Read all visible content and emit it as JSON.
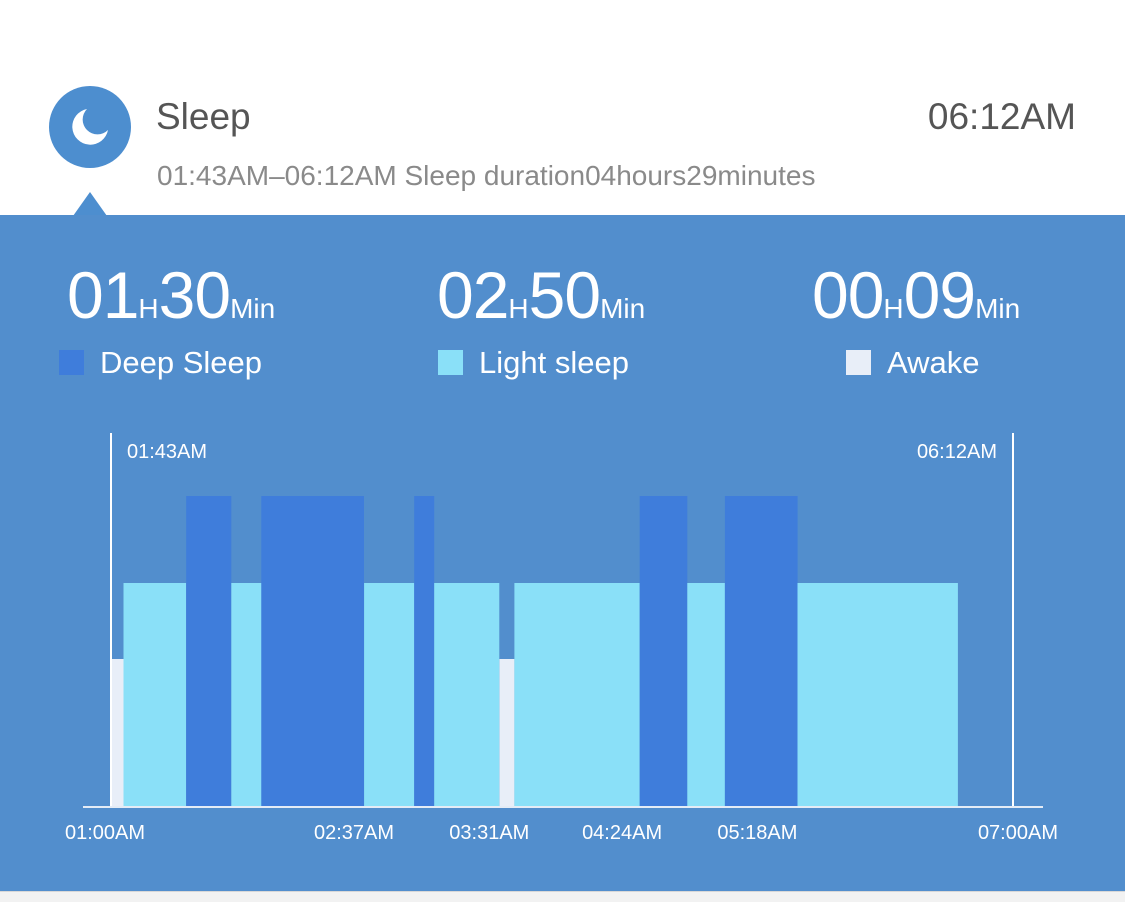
{
  "header": {
    "title": "Sleep",
    "time": "06:12AM",
    "subtitle": "01:43AM–06:12AM Sleep duration04hours29minutes",
    "icon": "moon-icon"
  },
  "stats": [
    {
      "hours": "01",
      "h_unit": "H",
      "minutes": "30",
      "m_unit": "Min",
      "label": "Deep Sleep"
    },
    {
      "hours": "02",
      "h_unit": "H",
      "minutes": "50",
      "m_unit": "Min",
      "label": "Light sleep"
    },
    {
      "hours": "00",
      "h_unit": "H",
      "minutes": "09",
      "m_unit": "Min",
      "label": "Awake"
    }
  ],
  "colors": {
    "panel": "#528ecd",
    "deep": "#3f7ddb",
    "light": "#8ae0f8",
    "awake": "#e8eef8",
    "icon_bg": "#4d8ecf"
  },
  "chart_data": {
    "type": "bar",
    "x_axis": {
      "start": "01:00",
      "end": "07:00",
      "unit": "time"
    },
    "tick_labels": [
      "01:00AM",
      "02:37AM",
      "03:31AM",
      "04:24AM",
      "05:18AM",
      "07:00AM"
    ],
    "ticks": [
      "01:00",
      "02:37",
      "03:31",
      "04:24",
      "05:18",
      "07:00"
    ],
    "marker_start": "01:43AM",
    "marker_end": "06:12AM",
    "levels": {
      "awake": 1,
      "light": 2,
      "deep": 3
    },
    "segments": [
      {
        "start": "01:00",
        "end": "01:05",
        "stage": "awake"
      },
      {
        "start": "01:05",
        "end": "01:30",
        "stage": "light"
      },
      {
        "start": "01:30",
        "end": "01:48",
        "stage": "deep"
      },
      {
        "start": "01:48",
        "end": "02:00",
        "stage": "light"
      },
      {
        "start": "02:00",
        "end": "02:41",
        "stage": "deep"
      },
      {
        "start": "02:41",
        "end": "03:01",
        "stage": "light"
      },
      {
        "start": "03:01",
        "end": "03:09",
        "stage": "deep"
      },
      {
        "start": "03:09",
        "end": "03:35",
        "stage": "light"
      },
      {
        "start": "03:35",
        "end": "03:41",
        "stage": "awake"
      },
      {
        "start": "03:41",
        "end": "04:31",
        "stage": "light"
      },
      {
        "start": "04:31",
        "end": "04:50",
        "stage": "deep"
      },
      {
        "start": "04:50",
        "end": "05:05",
        "stage": "light"
      },
      {
        "start": "05:05",
        "end": "05:34",
        "stage": "deep"
      },
      {
        "start": "05:34",
        "end": "06:38",
        "stage": "light"
      }
    ]
  }
}
